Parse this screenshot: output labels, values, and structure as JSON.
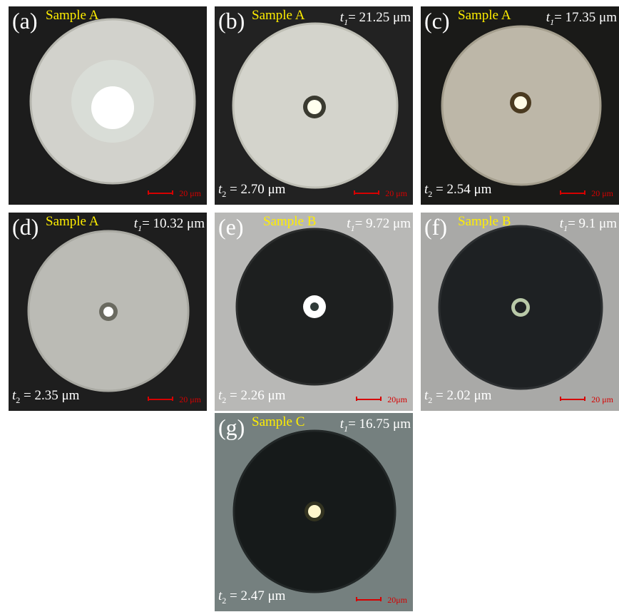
{
  "panels": [
    {
      "letter": "(a)",
      "sample": "Sample A",
      "t1": "",
      "t2": "",
      "scale": "20 μm",
      "colors": {
        "bg": "#1c1c1c",
        "disk": "#d2d2cc",
        "rim": "#b6b6ae",
        "core": "#ffffff",
        "halo": "#e9f3ea"
      }
    },
    {
      "letter": "(b)",
      "sample": "Sample A",
      "t1": "21.25 μm",
      "t2": "2.70 μm",
      "scale": "20 μm",
      "colors": {
        "bg": "#222222",
        "disk": "#d4d4cc",
        "rim": "#bebeb4",
        "core": "#ffffee",
        "halo": "#3a3a30"
      }
    },
    {
      "letter": "(c)",
      "sample": "Sample A",
      "t1": "17.35 μm",
      "t2": "2.54 μm",
      "scale": "20 μm",
      "colors": {
        "bg": "#1a1a18",
        "disk": "#bdb7a8",
        "rim": "#a59f8e",
        "core": "#fffbe6",
        "halo": "#4a3a20"
      }
    },
    {
      "letter": "(d)",
      "sample": "Sample A",
      "t1": "10.32 μm",
      "t2": "2.35 μm",
      "scale": "20 μm",
      "colors": {
        "bg": "#1e1e1e",
        "disk": "#bbbbb5",
        "rim": "#a9a9a2",
        "core": "#ffffff",
        "halo": "#6a6a60"
      }
    },
    {
      "letter": "(e)",
      "sample": "Sample B",
      "t1": "9.72 μm",
      "t2": "2.26 μm",
      "scale": "20μm",
      "colors": {
        "bg": "#b8b8b6",
        "disk": "#1d1f1f",
        "rim": "#2b2d2d",
        "core": "#ffffff",
        "halo": "#2f3a38"
      }
    },
    {
      "letter": "(f)",
      "sample": "Sample B",
      "t1": "9.1 μm",
      "t2": "2.02 μm",
      "scale": "20 μm",
      "colors": {
        "bg": "#a9a9a7",
        "disk": "#1e2123",
        "rim": "#2c2f31",
        "core": "#b9c9a8",
        "halo": "#1e2123"
      }
    },
    {
      "letter": "(g)",
      "sample": "Sample C",
      "t1": "16.75 μm",
      "t2": "2.47 μm",
      "scale": "20μm",
      "colors": {
        "bg": "#75807f",
        "disk": "#161a1a",
        "rim": "#222727",
        "core": "#fff7cc",
        "halo": "#333320"
      }
    }
  ]
}
